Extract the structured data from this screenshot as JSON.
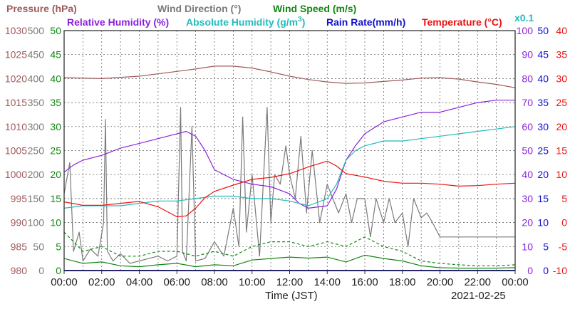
{
  "chart_data": {
    "type": "line",
    "header": {
      "pressure": "Pressure (hPa)",
      "wind_direction": "Wind Direction (°)",
      "wind_speed": "Wind Speed (m/s)",
      "relative_humidity": "Relative Humidity (%)",
      "absolute_humidity": "Absolute Humidity (g/m",
      "absolute_humidity_sup": "3",
      "absolute_humidity_close": ")",
      "rain_rate": "Rain Rate(mm/h)",
      "temperature": "Temperature (°C)",
      "rain_scale": "x0.1"
    },
    "xlabel": "Time (JST)",
    "date": "2021-02-25",
    "x_ticks": [
      "00:00",
      "02:00",
      "04:00",
      "06:00",
      "08:00",
      "10:00",
      "12:00",
      "14:00",
      "16:00",
      "18:00",
      "20:00",
      "22:00",
      "00:00"
    ],
    "axes": {
      "pressure": {
        "ticks": [
          "1030",
          "1025",
          "1020",
          "1015",
          "1010",
          "1005",
          "1000",
          "995",
          "990",
          "985",
          "980"
        ],
        "range": [
          980,
          1030
        ],
        "color": "#a05a5a"
      },
      "wind_direction": {
        "ticks": [
          "500",
          "450",
          "400",
          "350",
          "300",
          "250",
          "200",
          "150",
          "100",
          "50",
          "0"
        ],
        "range": [
          0,
          500
        ],
        "color": "#7a7a7a"
      },
      "wind_speed": {
        "ticks": [
          "50",
          "45",
          "40",
          "35",
          "30",
          "25",
          "20",
          "15",
          "10",
          "5",
          "0"
        ],
        "range": [
          0,
          50
        ],
        "color": "#118811"
      },
      "relative_humidity": {
        "ticks": [
          "100",
          "90",
          "80",
          "70",
          "60",
          "50",
          "40",
          "30",
          "20",
          "10",
          "0"
        ],
        "range": [
          0,
          100
        ],
        "color": "#8b22dd"
      },
      "rain_rate": {
        "ticks": [
          "50",
          "45",
          "40",
          "35",
          "30",
          "25",
          "20",
          "15",
          "10",
          "5",
          "0"
        ],
        "range": [
          0,
          50
        ],
        "color": "#1111cc"
      },
      "temperature": {
        "ticks": [
          "40",
          "35",
          "30",
          "25",
          "20",
          "15",
          "10",
          "5",
          "0",
          "-5",
          "-10"
        ],
        "range": [
          -10,
          40
        ],
        "color": "#ee1111"
      }
    },
    "series": [
      {
        "name": "Pressure (hPa)",
        "color": "#a05a5a",
        "axis": "pressure",
        "x": [
          0,
          2,
          4,
          6,
          7,
          8,
          9,
          10,
          11,
          12,
          13,
          14,
          15,
          16,
          17,
          18,
          19,
          20,
          21,
          22,
          23,
          24
        ],
        "y": [
          1020.2,
          1020.0,
          1020.5,
          1021.5,
          1022.0,
          1022.6,
          1022.6,
          1022.2,
          1021.4,
          1020.5,
          1019.8,
          1019.3,
          1019.0,
          1019.1,
          1019.4,
          1019.7,
          1020.1,
          1020.2,
          1019.9,
          1019.3,
          1018.8,
          1018.1
        ]
      },
      {
        "name": "Wind Direction (°)",
        "color": "#7a7a7a",
        "axis": "wind_direction",
        "x": [
          0,
          0.3,
          0.5,
          0.8,
          1,
          1.4,
          1.8,
          2.1,
          2.2,
          2.3,
          2.6,
          3,
          3.5,
          4,
          4.5,
          5,
          5.5,
          6,
          6.2,
          6.3,
          6.5,
          6.8,
          7,
          7.5,
          8,
          8.5,
          9,
          9.3,
          9.5,
          9.7,
          10,
          10.4,
          10.8,
          11,
          11.2,
          11.5,
          11.8,
          12,
          12.3,
          12.6,
          12.9,
          13.2,
          13.6,
          14,
          14.3,
          14.6,
          15,
          15.3,
          15.6,
          16,
          16.3,
          16.6,
          17,
          17.3,
          17.6,
          18,
          18.3,
          18.6,
          19,
          19.3,
          19.6,
          20,
          21,
          22,
          23,
          24
        ],
        "y": [
          160,
          225,
          40,
          80,
          20,
          45,
          30,
          100,
          315,
          40,
          20,
          35,
          15,
          20,
          25,
          30,
          20,
          30,
          340,
          40,
          20,
          300,
          20,
          25,
          60,
          30,
          130,
          50,
          320,
          80,
          200,
          30,
          340,
          100,
          200,
          180,
          260,
          200,
          150,
          280,
          120,
          250,
          100,
          180,
          150,
          120,
          160,
          100,
          150,
          150,
          70,
          150,
          100,
          150,
          100,
          120,
          50,
          150,
          110,
          120,
          100,
          70,
          70,
          70,
          70,
          70
        ]
      },
      {
        "name": "Wind Speed (m/s)",
        "color": "#118811",
        "axis": "wind_speed",
        "x": [
          0,
          1,
          2,
          3,
          4,
          5,
          6,
          7,
          8,
          9,
          10,
          11,
          12,
          13,
          14,
          15,
          16,
          17,
          18,
          19,
          20,
          21,
          22,
          23,
          24
        ],
        "y": [
          2.5,
          1.5,
          1.8,
          1.0,
          0.8,
          1.2,
          1.5,
          0.8,
          1.2,
          1.0,
          2.2,
          2.5,
          2.8,
          2.6,
          2.8,
          1.8,
          3.2,
          2.5,
          2.0,
          1.0,
          0.6,
          0.5,
          0.5,
          0.5,
          0.6
        ]
      },
      {
        "name": "Wind Speed gust (m/s)",
        "color": "#118811",
        "axis": "wind_speed",
        "dash": true,
        "x": [
          0,
          1,
          2,
          3,
          4,
          5,
          6,
          7,
          8,
          9,
          10,
          11,
          12,
          13,
          14,
          15,
          16,
          17,
          18,
          19,
          20,
          21,
          22,
          23,
          24
        ],
        "y": [
          8,
          4,
          5,
          3,
          3,
          4,
          4,
          3,
          4,
          3,
          5,
          6,
          6,
          5,
          6,
          5,
          7,
          5,
          4,
          2,
          1.5,
          1.2,
          1,
          1,
          1.2
        ]
      },
      {
        "name": "Relative Humidity (%)",
        "color": "#8b22dd",
        "axis": "relative_humidity",
        "x": [
          0,
          0.5,
          1,
          2,
          3,
          4,
          5,
          6,
          6.5,
          7,
          7.5,
          8,
          9,
          10,
          11,
          12,
          12.5,
          13,
          14,
          14.5,
          15,
          15.5,
          16,
          17,
          18,
          19,
          20,
          21,
          22,
          23,
          24
        ],
        "y": [
          41,
          44,
          46,
          48,
          51,
          53,
          55,
          57,
          58,
          56,
          50,
          42,
          38,
          36,
          35,
          32,
          28,
          26,
          27,
          34,
          46,
          52,
          57,
          62,
          64,
          66,
          66,
          68,
          70,
          71,
          71
        ]
      },
      {
        "name": "Absolute Humidity (g/m3)",
        "color": "#22bbbb",
        "axis": "relative_humidity",
        "x": [
          0,
          1,
          2,
          3,
          4,
          5,
          6,
          7,
          8,
          9,
          10,
          11,
          12,
          13,
          14,
          14.5,
          15,
          15.5,
          16,
          17,
          18,
          19,
          20,
          21,
          22,
          23,
          24
        ],
        "y": [
          26,
          27,
          27,
          27,
          28,
          29,
          29,
          30,
          31,
          31,
          30,
          30,
          29,
          27,
          30,
          36,
          46,
          50,
          52,
          54,
          54,
          55,
          56,
          57,
          58,
          59,
          60
        ]
      },
      {
        "name": "Rain Rate(mm/h)",
        "color": "#1111cc",
        "axis": "rain_rate",
        "x": [
          0,
          24
        ],
        "y": [
          0,
          0
        ]
      },
      {
        "name": "Temperature (°C)",
        "color": "#ee1111",
        "axis": "temperature",
        "x": [
          0,
          1,
          2,
          3,
          4,
          5,
          6,
          6.5,
          7,
          7.5,
          8,
          9,
          10,
          11,
          12,
          13,
          14,
          14.5,
          15,
          16,
          17,
          18,
          19,
          20,
          21,
          22,
          23,
          24
        ],
        "y": [
          4.3,
          3.6,
          3.6,
          4.0,
          4.4,
          3.3,
          1.2,
          1.4,
          3.0,
          5.2,
          6.5,
          7.8,
          9.0,
          9.4,
          10.2,
          11.6,
          12.8,
          11.8,
          10.2,
          9.5,
          8.6,
          8.2,
          8.2,
          8.0,
          7.6,
          7.7,
          8.0,
          8.2
        ]
      }
    ]
  }
}
